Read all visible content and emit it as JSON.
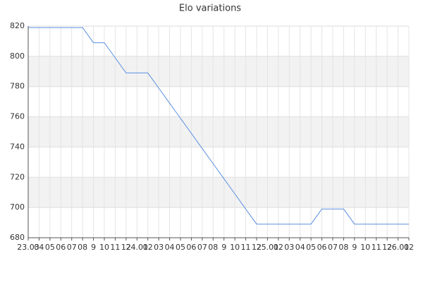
{
  "chart_data": {
    "type": "line",
    "title": "Elo variations",
    "categories": [
      "23.03",
      "04",
      "05",
      "06",
      "07",
      "08",
      "9",
      "10",
      "11",
      "12",
      "24.01",
      "02",
      "03",
      "04",
      "05",
      "06",
      "07",
      "08",
      "9",
      "10",
      "11",
      "12",
      "25.01",
      "02",
      "03",
      "04",
      "05",
      "06",
      "07",
      "08",
      "9",
      "10",
      "11",
      "12",
      "26.01",
      "02"
    ],
    "values": [
      819,
      819,
      819,
      819,
      819,
      819,
      809,
      809,
      799,
      789,
      789,
      789,
      779,
      769,
      759,
      749,
      739,
      729,
      719,
      709,
      699,
      689,
      689,
      689,
      689,
      689,
      689,
      699,
      699,
      699,
      689,
      689,
      689,
      689,
      689,
      689
    ],
    "color": "#5b8fe0",
    "ylim": [
      680,
      820
    ],
    "yticks": [
      680,
      700,
      720,
      740,
      760,
      780,
      800,
      820
    ],
    "grid": true
  }
}
